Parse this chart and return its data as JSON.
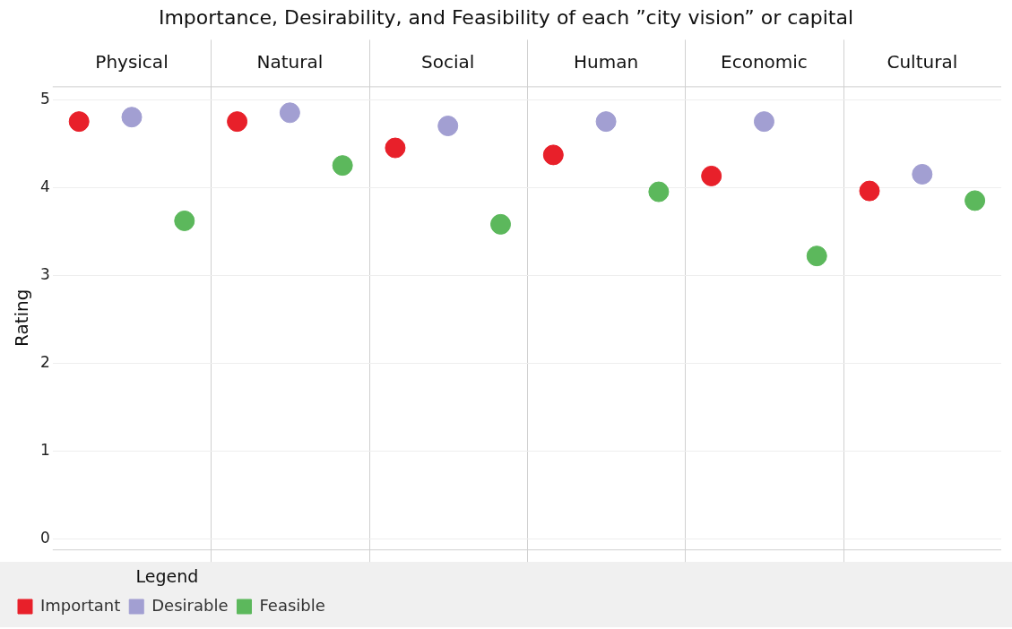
{
  "chart_data": {
    "type": "scatter",
    "title": "Importance, Desirability, and Feasibility of each ”city vision” or capital",
    "ylabel": "Rating",
    "legend_title": "Legend",
    "categories": [
      "Physical",
      "Natural",
      "Social",
      "Human",
      "Economic",
      "Cultural"
    ],
    "series": [
      {
        "name": "Important",
        "color": "#e8202a",
        "values": [
          4.75,
          4.75,
          4.45,
          4.37,
          4.13,
          3.96
        ]
      },
      {
        "name": "Desirable",
        "color": "#a29fd2",
        "values": [
          4.8,
          4.85,
          4.7,
          4.75,
          4.75,
          4.15
        ]
      },
      {
        "name": "Feasible",
        "color": "#5cb85c",
        "values": [
          3.62,
          4.25,
          3.58,
          3.95,
          3.22,
          3.85
        ]
      }
    ],
    "ylim": [
      -0.12,
      5.15
    ],
    "yticks": [
      0,
      1,
      2,
      3,
      4,
      5
    ],
    "grid": "y",
    "legend": "bottom left",
    "marker": "circle"
  }
}
